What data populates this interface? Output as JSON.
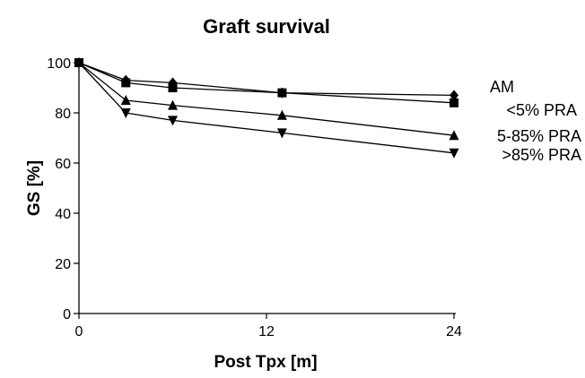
{
  "chart_data": {
    "type": "line",
    "title": "Graft survival",
    "xlabel": "Post Tpx [m]",
    "ylabel": "GS [%]",
    "xlim": [
      0,
      24
    ],
    "ylim": [
      0,
      100
    ],
    "xticks": [
      0,
      12,
      24
    ],
    "yticks": [
      0,
      20,
      40,
      60,
      80,
      100
    ],
    "grid": false,
    "legend": "right, labels at line ends",
    "line_color": "#000000",
    "series": [
      {
        "name": "AM",
        "marker": "diamond",
        "x": [
          0,
          3,
          6,
          13,
          24
        ],
        "y": [
          100,
          93,
          92,
          88,
          87
        ]
      },
      {
        "name": "<5% PRA",
        "marker": "square",
        "x": [
          0,
          3,
          6,
          13,
          24
        ],
        "y": [
          100,
          92,
          90,
          88,
          84
        ]
      },
      {
        "name": "5-85% PRA",
        "marker": "triangle-up",
        "x": [
          0,
          3,
          6,
          13,
          24
        ],
        "y": [
          100,
          85,
          83,
          79,
          71
        ]
      },
      {
        "name": ">85% PRA",
        "marker": "triangle-down",
        "x": [
          0,
          3,
          6,
          13,
          24
        ],
        "y": [
          100,
          80,
          77,
          72,
          64
        ]
      }
    ]
  }
}
